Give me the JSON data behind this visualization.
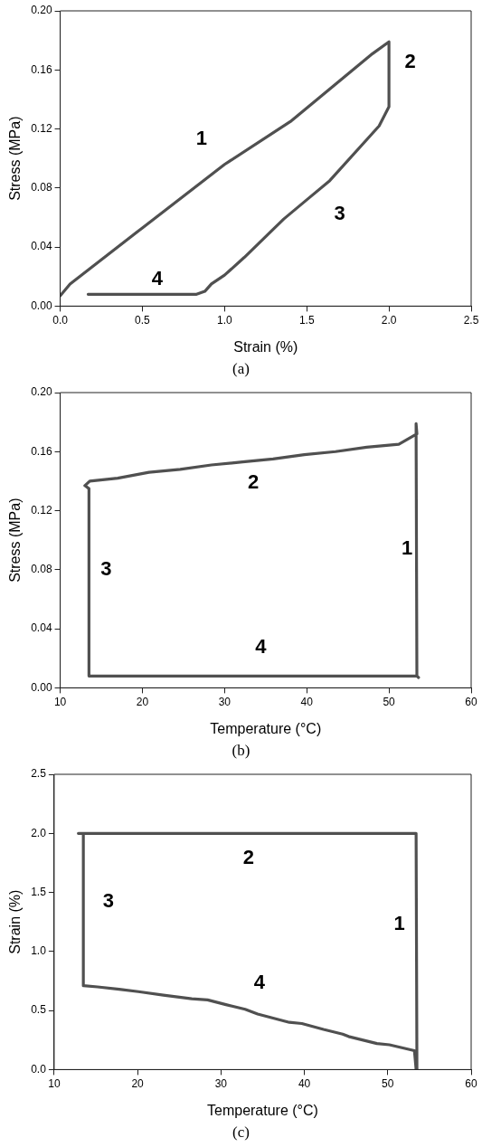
{
  "chart_data": [
    {
      "type": "line",
      "xlabel": "Strain (%)",
      "ylabel": "Stress (MPa)",
      "xlim": [
        0,
        2.5
      ],
      "ylim": [
        0,
        0.2
      ],
      "xticks": [
        {
          "value": 0,
          "label": "0.0"
        },
        0.5,
        {
          "value": 1,
          "label": "1.0"
        },
        1.5,
        {
          "value": 2,
          "label": "2.0"
        },
        2.5
      ],
      "yticks": [
        {
          "value": 0,
          "label": "0.00"
        },
        {
          "value": 0.04,
          "label": "0.04"
        },
        {
          "value": 0.08,
          "label": "0.08"
        },
        {
          "value": 0.12,
          "label": "0.12"
        },
        {
          "value": 0.16,
          "label": "0.16"
        },
        {
          "value": 0.2,
          "label": "0.20"
        }
      ],
      "marker": "none",
      "line_style": "solid",
      "series": [
        {
          "color": "#505050",
          "x": [
            0,
            0.06,
            0.5,
            1.0,
            1.4,
            1.9,
            2.0,
            2.0,
            1.94,
            1.64,
            1.5,
            1.36,
            1.24,
            1.12,
            1.0,
            0.92,
            0.88,
            0.83,
            0.17
          ],
          "values": [
            0.007,
            0.015,
            0.053,
            0.096,
            0.125,
            0.171,
            0.179,
            0.135,
            0.122,
            0.085,
            0.072,
            0.059,
            0.046,
            0.033,
            0.021,
            0.015,
            0.01,
            0.008,
            0.008
          ]
        }
      ],
      "annotations": [
        "1",
        "2",
        "3",
        "4",
        "(a)"
      ]
    },
    {
      "type": "line",
      "xlabel": "Temperature (°C)",
      "ylabel": "Stress (MPa)",
      "xlim": [
        10,
        60
      ],
      "ylim": [
        0,
        0.2
      ],
      "xticks": [
        10,
        20,
        30,
        40,
        50,
        60
      ],
      "yticks": [
        {
          "value": 0,
          "label": "0.00"
        },
        {
          "value": 0.04,
          "label": "0.04"
        },
        {
          "value": 0.08,
          "label": "0.08"
        },
        {
          "value": 0.12,
          "label": "0.12"
        },
        {
          "value": 0.16,
          "label": "0.16"
        },
        {
          "value": 0.2,
          "label": "0.20"
        }
      ],
      "marker": "none",
      "line_style": "solid",
      "series": [
        {
          "color": "#505050",
          "x": [
            53.4,
            53.3,
            53.4,
            51.2,
            47.3,
            43.5,
            39.7,
            35.9,
            32.2,
            28.4,
            24.6,
            20.8,
            17.0,
            13.6,
            13.0,
            13.5,
            13.5,
            53.4,
            53.6
          ],
          "values": [
            0.008,
            0.179,
            0.172,
            0.165,
            0.163,
            0.16,
            0.158,
            0.155,
            0.153,
            0.151,
            0.148,
            0.146,
            0.142,
            0.14,
            0.137,
            0.135,
            0.008,
            0.008,
            0.007
          ]
        }
      ],
      "annotations": [
        "1",
        "2",
        "3",
        "4",
        "(b)"
      ]
    },
    {
      "type": "line",
      "xlabel": "Temperature (°C)",
      "ylabel": "Strain (%)",
      "xlim": [
        10,
        60
      ],
      "ylim": [
        0,
        2.5
      ],
      "xticks": [
        10,
        20,
        30,
        40,
        50,
        60
      ],
      "yticks": [
        {
          "value": 0,
          "label": "0.0"
        },
        0.5,
        {
          "value": 1,
          "label": "1.0"
        },
        1.5,
        {
          "value": 2,
          "label": "2.0"
        },
        2.5
      ],
      "marker": "none",
      "line_style": "solid",
      "series": [
        {
          "color": "#505050",
          "x": [
            53.5,
            53.4,
            12.9,
            13.5,
            13.5,
            15.2,
            17.8,
            20.1,
            23.1,
            26.5,
            28.4,
            30.6,
            32.9,
            34.4,
            38.2,
            39.7,
            42.3,
            44.6,
            45.3,
            48.7,
            50.2,
            53.2,
            53.4
          ],
          "values": [
            0,
            2.0,
            2.0,
            2.0,
            0.71,
            0.7,
            0.68,
            0.66,
            0.63,
            0.6,
            0.59,
            0.55,
            0.51,
            0.47,
            0.4,
            0.39,
            0.34,
            0.3,
            0.28,
            0.22,
            0.21,
            0.16,
            0
          ]
        }
      ],
      "annotations": [
        "1",
        "2",
        "3",
        "4",
        "(c)"
      ]
    }
  ]
}
